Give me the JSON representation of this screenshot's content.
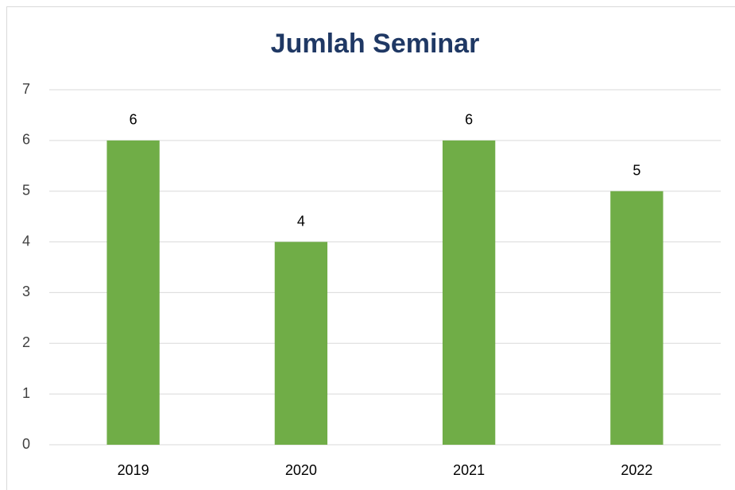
{
  "chart_data": {
    "type": "bar",
    "title": "Jumlah Seminar",
    "categories": [
      "2019",
      "2020",
      "2021",
      "2022"
    ],
    "values": [
      6,
      4,
      6,
      5
    ],
    "color": "#70ad47",
    "ylim": [
      0,
      7
    ],
    "yticks": [
      0,
      1,
      2,
      3,
      4,
      5,
      6,
      7
    ],
    "grid": true
  }
}
